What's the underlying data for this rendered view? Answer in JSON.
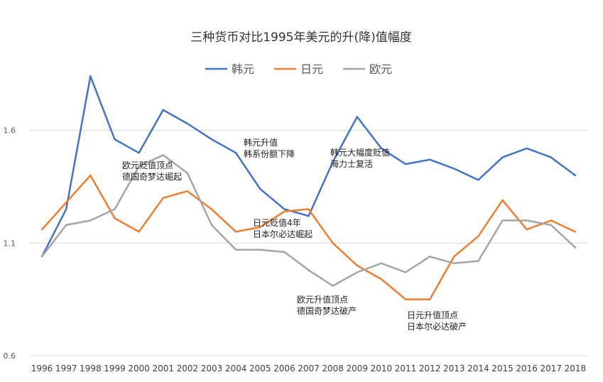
{
  "chart_data": {
    "type": "line",
    "title": "三种货币对比1995年美元的升(降)值幅度",
    "categories": [
      "1996",
      "1997",
      "1998",
      "1999",
      "2000",
      "2001",
      "2002",
      "2003",
      "2004",
      "2005",
      "2006",
      "2007",
      "2008",
      "2009",
      "2010",
      "2011",
      "2012",
      "2013",
      "2014",
      "2015",
      "2016",
      "2017",
      "2018"
    ],
    "ylim": [
      0.6,
      1.8
    ],
    "yticks": [
      0.6,
      1.1,
      1.6
    ],
    "ytick_labels": [
      "0.6",
      "1.1",
      "1.6"
    ],
    "grid": true,
    "legend": "top",
    "series": [
      {
        "name": "韩元",
        "color": "#4472C4",
        "values": [
          1.04,
          1.25,
          1.84,
          1.56,
          1.5,
          1.69,
          1.63,
          1.56,
          1.5,
          1.34,
          1.25,
          1.22,
          1.46,
          1.66,
          1.52,
          1.45,
          1.47,
          1.43,
          1.38,
          1.48,
          1.52,
          1.48,
          1.4
        ]
      },
      {
        "name": "日元",
        "color": "#ED7D31",
        "values": [
          1.16,
          1.28,
          1.4,
          1.21,
          1.15,
          1.3,
          1.33,
          1.25,
          1.15,
          1.17,
          1.24,
          1.25,
          1.1,
          1.0,
          0.94,
          0.85,
          0.85,
          1.04,
          1.13,
          1.29,
          1.16,
          1.2,
          1.15
        ]
      },
      {
        "name": "欧元",
        "color": "#A5A5A5",
        "values": [
          1.04,
          1.18,
          1.2,
          1.25,
          1.44,
          1.49,
          1.41,
          1.18,
          1.07,
          1.07,
          1.06,
          0.98,
          0.91,
          0.97,
          1.01,
          0.97,
          1.04,
          1.01,
          1.02,
          1.2,
          1.2,
          1.18,
          1.08
        ]
      }
    ],
    "annotations": [
      {
        "id": "ann-euro-low-2000",
        "lines": [
          "欧元贬值顶点",
          "德国奇梦达崛起"
        ]
      },
      {
        "id": "ann-krw-up-2004",
        "lines": [
          "韩元升值",
          "韩系份额下降"
        ]
      },
      {
        "id": "ann-krw-down-2008",
        "lines": [
          "韩元大幅度贬值",
          "海力士复活"
        ]
      },
      {
        "id": "ann-jpy-down-2005",
        "lines": [
          "日元贬值4年",
          "日本尔必达崛起"
        ]
      },
      {
        "id": "ann-euro-up-2007",
        "lines": [
          "欧元升值顶点",
          "德国奇梦达破产"
        ]
      },
      {
        "id": "ann-jpy-up-2011",
        "lines": [
          "日元升值顶点",
          "日本尔必达破产"
        ]
      }
    ]
  }
}
